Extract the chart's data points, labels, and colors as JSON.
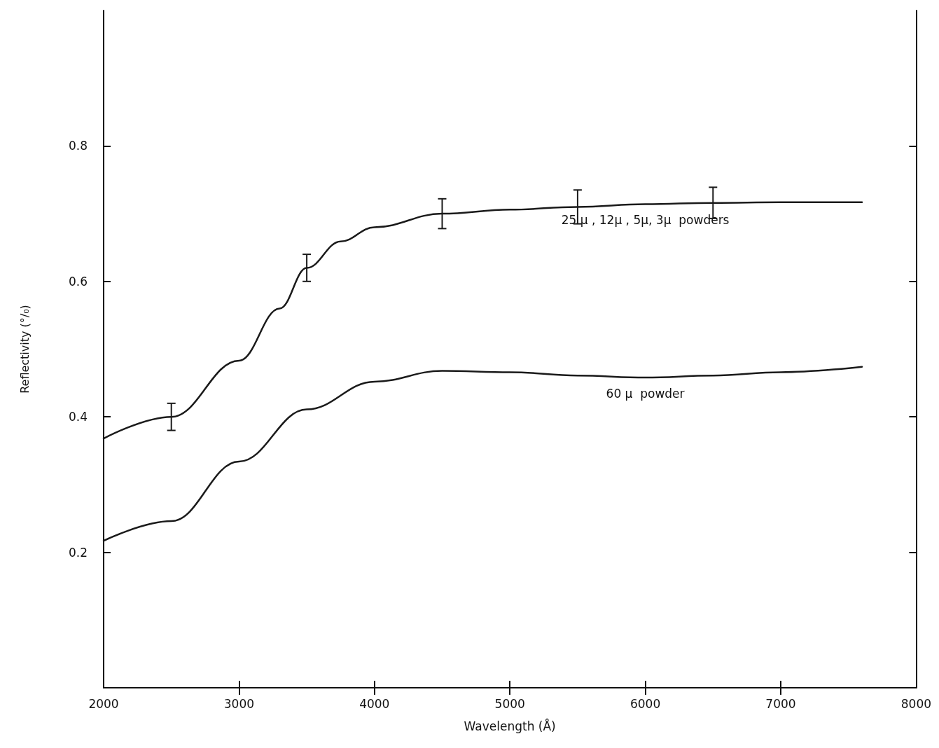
{
  "chart_data": {
    "type": "line",
    "xlabel": "Wavelength (Å)",
    "ylabel": "Reflectivity (°/₀)",
    "xlim": [
      2000,
      8000
    ],
    "xticks": [
      2000,
      3000,
      4000,
      5000,
      6000,
      7000,
      8000
    ],
    "ylim": [
      0,
      1
    ],
    "yticks": [
      0.2,
      0.4,
      0.6,
      0.8
    ],
    "grid": false,
    "legend": false,
    "marker": "none",
    "line_style": "solid",
    "series": [
      {
        "name": "25 μ , 12μ , 5μ, 3μ  powders",
        "color": "#1a1a1a",
        "x": [
          2000,
          2500,
          3000,
          3300,
          3500,
          3750,
          4000,
          4500,
          5000,
          5500,
          6000,
          6500,
          7000,
          7600
        ],
        "values": [
          0.368,
          0.4,
          0.483,
          0.56,
          0.62,
          0.659,
          0.68,
          0.7,
          0.706,
          0.71,
          0.714,
          0.716,
          0.717,
          0.717
        ],
        "errors": [
          null,
          0.02,
          null,
          null,
          0.02,
          null,
          null,
          0.022,
          null,
          0.025,
          null,
          0.023,
          null,
          null
        ]
      },
      {
        "name": "60 μ  powder",
        "color": "#1a1a1a",
        "x": [
          2000,
          2500,
          3000,
          3500,
          4000,
          4500,
          5000,
          5500,
          6000,
          6500,
          7000,
          7600
        ],
        "values": [
          0.217,
          0.246,
          0.334,
          0.411,
          0.452,
          0.468,
          0.466,
          0.461,
          0.458,
          0.461,
          0.466,
          0.474
        ]
      }
    ]
  }
}
